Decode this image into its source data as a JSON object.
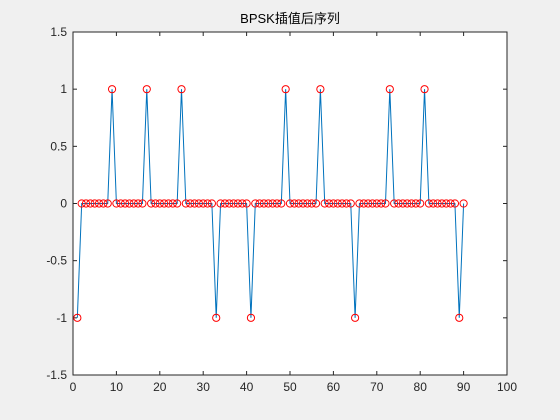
{
  "chart_data": {
    "type": "line",
    "title": "BPSK插值后序列",
    "xlabel": "",
    "ylabel": "",
    "xlim": [
      0,
      100
    ],
    "ylim": [
      -1.5,
      1.5
    ],
    "xticks": [
      0,
      10,
      20,
      30,
      40,
      50,
      60,
      70,
      80,
      90,
      100
    ],
    "yticks": [
      -1.5,
      -1,
      -0.5,
      0,
      0.5,
      1,
      1.5
    ],
    "xtick_labels": [
      "0",
      "10",
      "20",
      "30",
      "40",
      "50",
      "60",
      "70",
      "80",
      "90",
      "100"
    ],
    "ytick_labels": [
      "-1.5",
      "-1",
      "-0.5",
      "0",
      "0.5",
      "1",
      "1.5"
    ],
    "grid": false,
    "line_color": "#0072bd",
    "marker_color": "#ff0000",
    "marker": "circle",
    "x": [
      1,
      2,
      3,
      4,
      5,
      6,
      7,
      8,
      9,
      10,
      11,
      12,
      13,
      14,
      15,
      16,
      17,
      18,
      19,
      20,
      21,
      22,
      23,
      24,
      25,
      26,
      27,
      28,
      29,
      30,
      31,
      32,
      33,
      34,
      35,
      36,
      37,
      38,
      39,
      40,
      41,
      42,
      43,
      44,
      45,
      46,
      47,
      48,
      49,
      50,
      51,
      52,
      53,
      54,
      55,
      56,
      57,
      58,
      59,
      60,
      61,
      62,
      63,
      64,
      65,
      66,
      67,
      68,
      69,
      70,
      71,
      72,
      73,
      74,
      75,
      76,
      77,
      78,
      79,
      80,
      81,
      82,
      83,
      84,
      85,
      86,
      87,
      88,
      89,
      90
    ],
    "values": [
      -1,
      0,
      0,
      0,
      0,
      0,
      0,
      0,
      1,
      0,
      0,
      0,
      0,
      0,
      0,
      0,
      1,
      0,
      0,
      0,
      0,
      0,
      0,
      0,
      1,
      0,
      0,
      0,
      0,
      0,
      0,
      0,
      -1,
      0,
      0,
      0,
      0,
      0,
      0,
      0,
      -1,
      0,
      0,
      0,
      0,
      0,
      0,
      0,
      1,
      0,
      0,
      0,
      0,
      0,
      0,
      0,
      1,
      0,
      0,
      0,
      0,
      0,
      0,
      0,
      -1,
      0,
      0,
      0,
      0,
      0,
      0,
      0,
      1,
      0,
      0,
      0,
      0,
      0,
      0,
      0,
      1,
      0,
      0,
      0,
      0,
      0,
      0,
      0,
      -1,
      0
    ]
  }
}
